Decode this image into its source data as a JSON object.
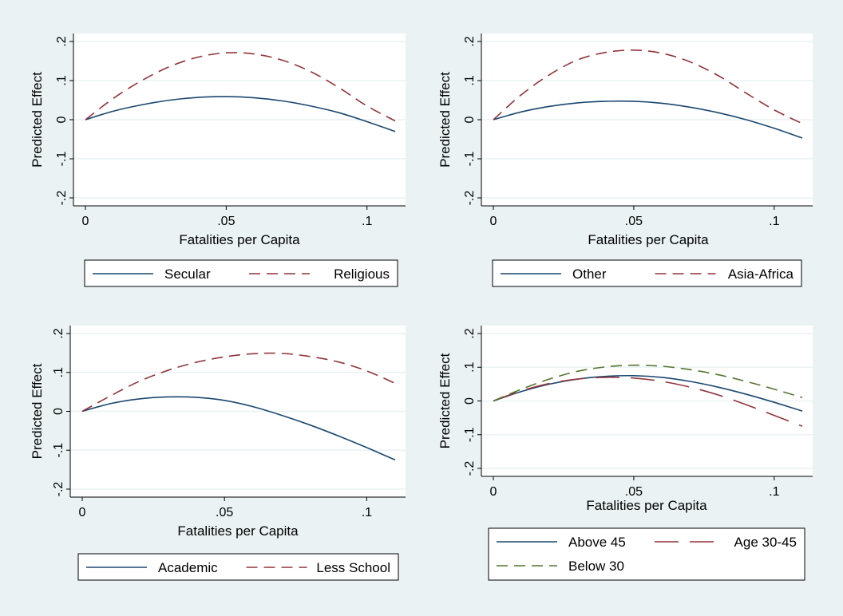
{
  "colors": {
    "background": "#eaf2f3",
    "plot_area": "#ffffff",
    "gridline": "#eaf2f3",
    "navy": "#1a476f",
    "maroon": "#90353b",
    "green": "#55752f"
  },
  "chart_data": [
    {
      "type": "line",
      "xlabel": "Fatalities per Capita",
      "ylabel": "Predicted Effect",
      "xlim": [
        0,
        0.11
      ],
      "ylim": [
        -0.2,
        0.2
      ],
      "xticks": [
        {
          "value": 0,
          "label": "0"
        },
        {
          "value": 0.05,
          "label": ".05"
        },
        {
          "value": 0.1,
          "label": ".1"
        }
      ],
      "yticks": [
        {
          "value": -0.2,
          "label": "-.2"
        },
        {
          "value": -0.1,
          "label": "-.1"
        },
        {
          "value": 0,
          "label": "0"
        },
        {
          "value": 0.1,
          "label": ".1"
        },
        {
          "value": 0.2,
          "label": ".2"
        }
      ],
      "grid": true,
      "legend_position": "bottom",
      "x": [
        0,
        0.01,
        0.02,
        0.03,
        0.04,
        0.05,
        0.06,
        0.07,
        0.08,
        0.09,
        0.1,
        0.11
      ],
      "series": [
        {
          "name": "Secular",
          "color": "navy",
          "dash": "solid",
          "values": [
            0,
            0.022,
            0.038,
            0.05,
            0.057,
            0.059,
            0.056,
            0.048,
            0.035,
            0.018,
            -0.005,
            -0.03
          ]
        },
        {
          "name": "Religious",
          "color": "maroon",
          "dash": "dashed",
          "values": [
            0,
            0.055,
            0.1,
            0.136,
            0.16,
            0.171,
            0.168,
            0.152,
            0.123,
            0.082,
            0.035,
            -0.003
          ]
        }
      ]
    },
    {
      "type": "line",
      "xlabel": "Fatalities per Capita",
      "ylabel": "Predicted Effect",
      "xlim": [
        0,
        0.11
      ],
      "ylim": [
        -0.2,
        0.2
      ],
      "xticks": [
        {
          "value": 0,
          "label": "0"
        },
        {
          "value": 0.05,
          "label": ".05"
        },
        {
          "value": 0.1,
          "label": ".1"
        }
      ],
      "yticks": [
        {
          "value": -0.2,
          "label": "-.2"
        },
        {
          "value": -0.1,
          "label": "-.1"
        },
        {
          "value": 0,
          "label": "0"
        },
        {
          "value": 0.1,
          "label": ".1"
        },
        {
          "value": 0.2,
          "label": ".2"
        }
      ],
      "grid": true,
      "legend_position": "bottom",
      "x": [
        0,
        0.01,
        0.02,
        0.03,
        0.04,
        0.05,
        0.06,
        0.07,
        0.08,
        0.09,
        0.1,
        0.11
      ],
      "series": [
        {
          "name": "Other",
          "color": "navy",
          "dash": "solid",
          "values": [
            0,
            0.02,
            0.034,
            0.043,
            0.047,
            0.047,
            0.042,
            0.032,
            0.018,
            0.0,
            -0.022,
            -0.047
          ]
        },
        {
          "name": "Asia-Africa",
          "color": "maroon",
          "dash": "dashed",
          "values": [
            0,
            0.064,
            0.115,
            0.153,
            0.172,
            0.178,
            0.17,
            0.148,
            0.113,
            0.068,
            0.025,
            -0.01
          ]
        }
      ]
    },
    {
      "type": "line",
      "xlabel": "Fatalities per Capita",
      "ylabel": "Predicted Effect",
      "xlim": [
        0,
        0.11
      ],
      "ylim": [
        -0.2,
        0.2
      ],
      "xticks": [
        {
          "value": 0,
          "label": "0"
        },
        {
          "value": 0.05,
          "label": ".05"
        },
        {
          "value": 0.1,
          "label": ".1"
        }
      ],
      "yticks": [
        {
          "value": -0.2,
          "label": "-.2"
        },
        {
          "value": -0.1,
          "label": "-.1"
        },
        {
          "value": 0,
          "label": "0"
        },
        {
          "value": 0.1,
          "label": ".1"
        },
        {
          "value": 0.2,
          "label": ".2"
        }
      ],
      "grid": true,
      "legend_position": "bottom",
      "x": [
        0,
        0.01,
        0.02,
        0.03,
        0.04,
        0.05,
        0.06,
        0.07,
        0.08,
        0.09,
        0.1,
        0.11
      ],
      "series": [
        {
          "name": "Academic",
          "color": "navy",
          "dash": "solid",
          "values": [
            0,
            0.02,
            0.032,
            0.037,
            0.036,
            0.028,
            0.012,
            -0.01,
            -0.035,
            -0.063,
            -0.093,
            -0.125
          ]
        },
        {
          "name": "Less School",
          "color": "maroon",
          "dash": "dashed",
          "values": [
            0,
            0.04,
            0.077,
            0.105,
            0.126,
            0.14,
            0.148,
            0.149,
            0.141,
            0.127,
            0.104,
            0.072
          ]
        }
      ]
    },
    {
      "type": "line",
      "xlabel": "Fatalities per Capita",
      "ylabel": "Predicted Effect",
      "xlim": [
        0,
        0.11
      ],
      "ylim": [
        -0.2,
        0.2
      ],
      "xticks": [
        {
          "value": 0,
          "label": "0"
        },
        {
          "value": 0.05,
          "label": ".05"
        },
        {
          "value": 0.1,
          "label": ".1"
        }
      ],
      "yticks": [
        {
          "value": -0.2,
          "label": "-.2"
        },
        {
          "value": -0.1,
          "label": "-.1"
        },
        {
          "value": 0,
          "label": "0"
        },
        {
          "value": 0.1,
          "label": ".1"
        },
        {
          "value": 0.2,
          "label": ".2"
        }
      ],
      "grid": true,
      "legend_position": "bottom",
      "x": [
        0,
        0.01,
        0.02,
        0.03,
        0.04,
        0.05,
        0.06,
        0.07,
        0.08,
        0.09,
        0.1,
        0.11
      ],
      "series": [
        {
          "name": "Above 45",
          "color": "navy",
          "dash": "solid",
          "values": [
            0,
            0.028,
            0.05,
            0.065,
            0.073,
            0.075,
            0.07,
            0.058,
            0.041,
            0.02,
            -0.004,
            -0.03
          ]
        },
        {
          "name": "Age 30-45",
          "color": "maroon",
          "dash": "longdash",
          "values": [
            0,
            0.03,
            0.052,
            0.065,
            0.07,
            0.068,
            0.058,
            0.041,
            0.018,
            -0.011,
            -0.043,
            -0.075
          ]
        },
        {
          "name": "Below 30",
          "color": "green",
          "dash": "dashed",
          "values": [
            0,
            0.035,
            0.065,
            0.088,
            0.101,
            0.106,
            0.103,
            0.093,
            0.078,
            0.058,
            0.035,
            0.01
          ]
        }
      ]
    }
  ]
}
